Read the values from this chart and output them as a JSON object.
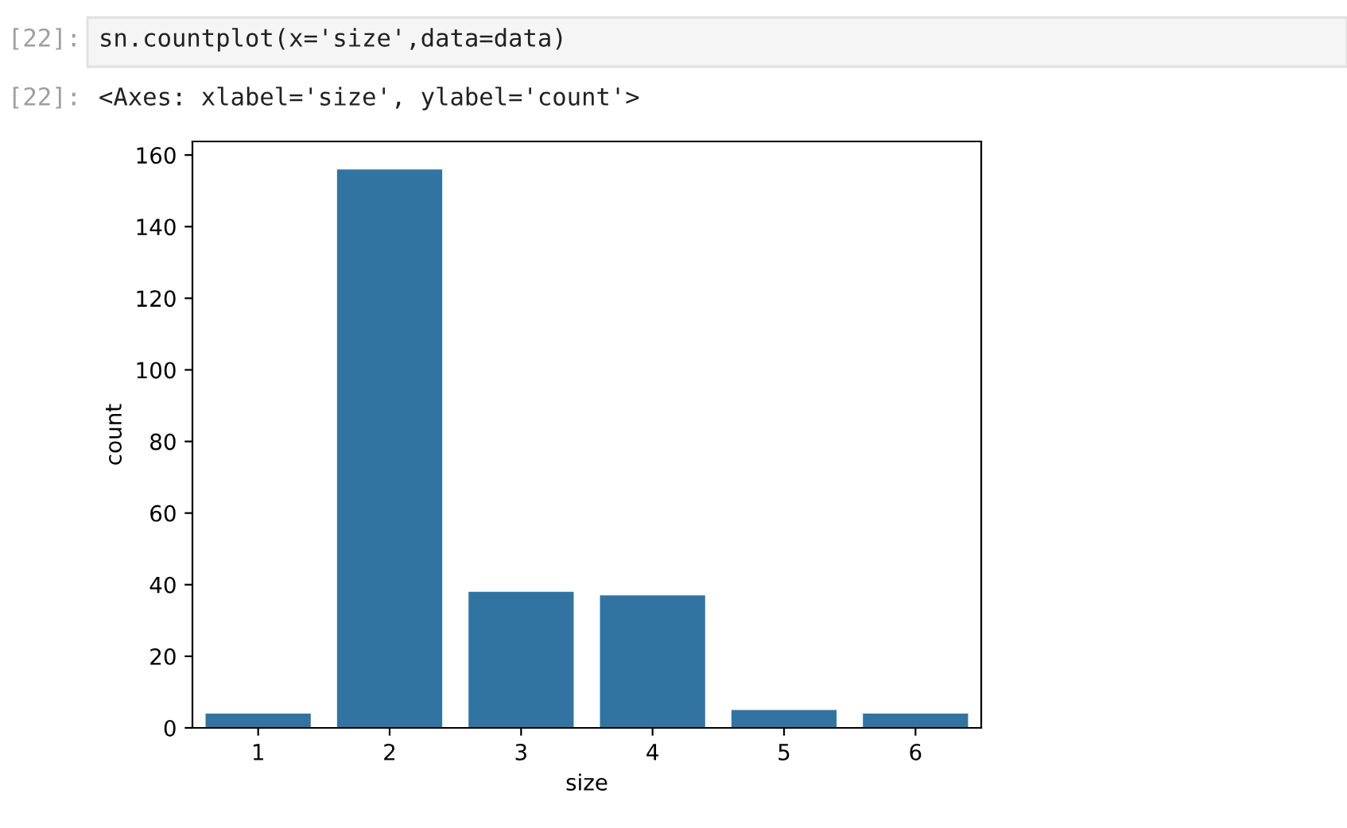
{
  "chart_data": {
    "type": "bar",
    "xlabel": "size",
    "ylabel": "count",
    "categories": [
      "1",
      "2",
      "3",
      "4",
      "5",
      "6"
    ],
    "values": [
      4,
      156,
      38,
      37,
      5,
      4
    ],
    "color": "#3274a1",
    "ylim": [
      0,
      163.8
    ],
    "yticks": [
      0,
      20,
      40,
      60,
      80,
      100,
      120,
      140,
      160
    ],
    "grid": false,
    "annotations": [
      "[22]:",
      "sn.countplot(x='size',data=data)",
      "[22]:",
      "<Axes: xlabel='size', ylabel='count'>"
    ]
  }
}
